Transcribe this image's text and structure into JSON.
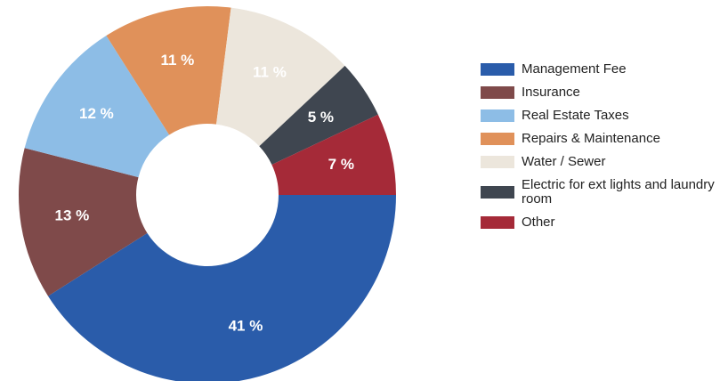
{
  "chart_data": {
    "type": "donut",
    "categories": [
      "Management Fee",
      "Insurance",
      "Real Estate Taxes",
      "Repairs & Maintenance",
      "Water / Sewer",
      "Electric for ext lights and laundry room",
      "Other"
    ],
    "values": [
      41,
      13,
      12,
      11,
      11,
      5,
      7
    ],
    "value_labels": [
      "41 %",
      "13 %",
      "12 %",
      "11 %",
      "11 %",
      "5 %",
      "7 %"
    ],
    "colors": [
      "#2a5caa",
      "#7f4a4a",
      "#8dbde6",
      "#e0915a",
      "#ece6dc",
      "#3f4650",
      "#a52a38"
    ],
    "legend": "right"
  }
}
